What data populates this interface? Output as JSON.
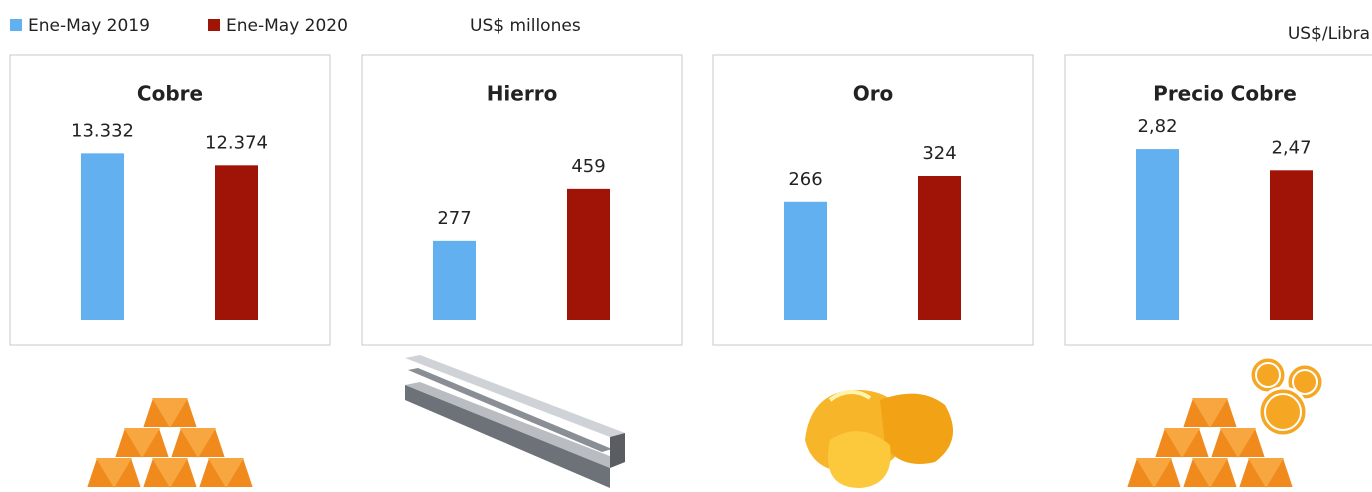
{
  "chart_data": [
    {
      "type": "bar",
      "title": "Cobre",
      "y_label": "US$ millones",
      "ylim": [
        0,
        16000
      ],
      "series": [
        {
          "name": "Ene-May 2019",
          "color": "#62b0f0",
          "values": [
            13332
          ],
          "value_labels": [
            "13.332"
          ]
        },
        {
          "name": "Ene-May 2020",
          "color": "#a01408",
          "values": [
            12374
          ],
          "value_labels": [
            "12.374"
          ]
        }
      ]
    },
    {
      "type": "bar",
      "title": "Hierro",
      "ylim": [
        0,
        700
      ],
      "series": [
        {
          "name": "Ene-May 2019",
          "color": "#62b0f0",
          "values": [
            277
          ]
        },
        {
          "name": "Ene-May 2020",
          "color": "#a01408",
          "values": [
            459
          ]
        }
      ]
    },
    {
      "type": "bar",
      "title": "Oro",
      "ylim": [
        0,
        450
      ],
      "series": [
        {
          "name": "Ene-May 2019",
          "color": "#62b0f0",
          "values": [
            266
          ]
        },
        {
          "name": "Ene-May 2020",
          "color": "#a01408",
          "values": [
            324
          ]
        }
      ]
    },
    {
      "type": "bar",
      "title": "Precio Cobre",
      "y_label": "US$/Libra",
      "ylim": [
        0,
        3.3
      ],
      "series": [
        {
          "name": "Ene-May 2019",
          "color": "#62b0f0",
          "values": [
            2.82
          ],
          "value_labels": [
            "2,82"
          ]
        },
        {
          "name": "Ene-May 2020",
          "color": "#a01408",
          "values": [
            2.47
          ],
          "value_labels": [
            "2,47"
          ]
        }
      ]
    }
  ]
}
